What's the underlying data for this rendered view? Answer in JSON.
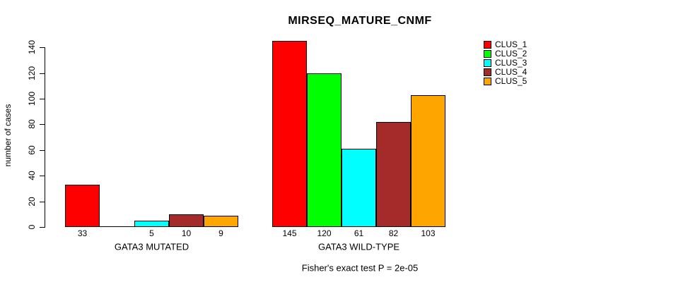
{
  "chart_data": {
    "type": "bar",
    "title": "MIRSEQ_MATURE_CNMF",
    "ylabel": "number of cases",
    "xlabel": "",
    "caption": "Fisher's exact test P = 2e-05",
    "ylim": [
      0,
      145
    ],
    "yticks": [
      0,
      20,
      40,
      60,
      80,
      100,
      120,
      140
    ],
    "grid": false,
    "legend_position": "right",
    "categories": [
      "GATA3 MUTATED",
      "GATA3 WILD-TYPE"
    ],
    "series": [
      {
        "name": "CLUS_1",
        "color": "#FF0000",
        "values": [
          33,
          145
        ]
      },
      {
        "name": "CLUS_2",
        "color": "#00FF00",
        "values": [
          0,
          120
        ]
      },
      {
        "name": "CLUS_3",
        "color": "#00FFFF",
        "values": [
          5,
          61
        ]
      },
      {
        "name": "CLUS_4",
        "color": "#A52A2A",
        "values": [
          10,
          82
        ]
      },
      {
        "name": "CLUS_5",
        "color": "#FFA500",
        "values": [
          9,
          103
        ]
      }
    ],
    "bar_value_labels": [
      [
        "33",
        "",
        "5",
        "10",
        "9"
      ],
      [
        "145",
        "120",
        "61",
        "82",
        "103"
      ]
    ]
  }
}
